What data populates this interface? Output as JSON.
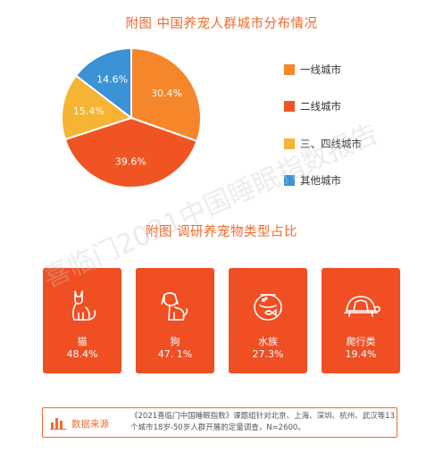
{
  "chart_data": [
    {
      "type": "pie",
      "title": "附图 中国养宠人群城市分布情况",
      "slices": [
        {
          "label": "一线城市",
          "value": 30.4,
          "display": "30.4%",
          "color": "#f5862a"
        },
        {
          "label": "二线城市",
          "value": 39.6,
          "display": "39.6%",
          "color": "#f05423"
        },
        {
          "label": "三、四线城市",
          "value": 15.4,
          "display": "15.4%",
          "color": "#f6b434"
        },
        {
          "label": "其他城市",
          "value": 14.6,
          "display": "14.6%",
          "color": "#3b92d4"
        }
      ],
      "legend_position": "right"
    },
    {
      "type": "table",
      "title": "附图 调研养宠物类型占比",
      "items": [
        {
          "label": "猫",
          "value": 48.4,
          "display": "48.4%",
          "icon": "cat-icon"
        },
        {
          "label": "狗",
          "value": 47.1,
          "display": "47. 1%",
          "icon": "dog-icon"
        },
        {
          "label": "水族",
          "value": 27.3,
          "display": "27.3%",
          "icon": "fish-bowl-icon"
        },
        {
          "label": "爬行类",
          "value": 19.4,
          "display": "19.4%",
          "icon": "turtle-icon"
        }
      ]
    }
  ],
  "source": {
    "label": "数据来源",
    "icon": "bar-chart-icon",
    "text": "《2021喜临门中国睡眠指数》课题组针对北京、上海、深圳、杭州、武汉等13个城市18岁-50岁人群开展的定量调查，N=2600。"
  },
  "watermark": "喜临门2021中国睡眠指数报告",
  "colors": {
    "accent": "#f26a2b",
    "card": "#f04e23"
  }
}
